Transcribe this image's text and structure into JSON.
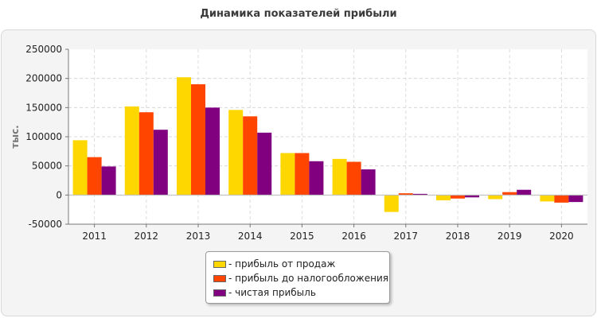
{
  "chart_data": {
    "type": "bar",
    "title": "Динамика показателей прибыли",
    "ylabel": "тыс.",
    "xlabel": "",
    "categories": [
      "2011",
      "2012",
      "2013",
      "2014",
      "2015",
      "2016",
      "2017",
      "2018",
      "2019",
      "2020"
    ],
    "ylim": [
      -50000,
      250000
    ],
    "yticks": [
      "250000",
      "200000",
      "150000",
      "100000",
      "50000",
      "0",
      "-50000"
    ],
    "grid": true,
    "legend_position": "bottom",
    "series": [
      {
        "name": "- прибыль от продаж",
        "color": "#FFD700",
        "values": [
          94000,
          152000,
          202000,
          146000,
          72000,
          62000,
          -29000,
          -9000,
          -7000,
          -11000
        ]
      },
      {
        "name": "- прибыль до налогообложения",
        "color": "#FF4500",
        "values": [
          65000,
          142000,
          190000,
          135000,
          72000,
          57000,
          3000,
          -6000,
          5000,
          -13000
        ]
      },
      {
        "name": "- чистая прибыль",
        "color": "#800080",
        "values": [
          49000,
          112000,
          150000,
          107000,
          58000,
          44000,
          2000,
          -4000,
          9000,
          -12000
        ]
      }
    ]
  }
}
